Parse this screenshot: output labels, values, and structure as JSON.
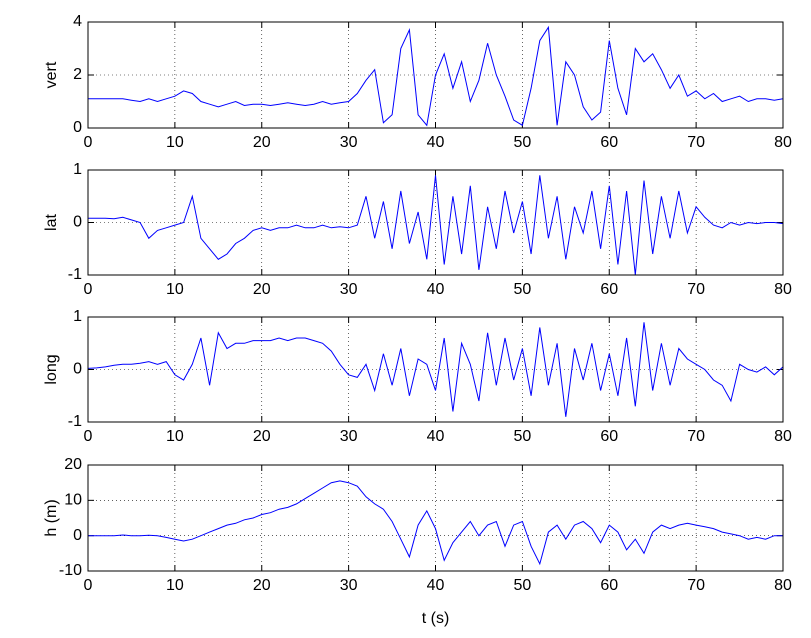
{
  "chart_data": [
    {
      "type": "line",
      "ylabel": "vert",
      "x": [
        0,
        1,
        2,
        3,
        4,
        5,
        6,
        7,
        8,
        9,
        10,
        11,
        12,
        13,
        14,
        15,
        16,
        17,
        18,
        19,
        20,
        21,
        22,
        23,
        24,
        25,
        26,
        27,
        28,
        29,
        30,
        31,
        32,
        33,
        34,
        35,
        36,
        37,
        38,
        39,
        40,
        41,
        42,
        43,
        44,
        45,
        46,
        47,
        48,
        49,
        50,
        51,
        52,
        53,
        54,
        55,
        56,
        57,
        58,
        59,
        60,
        61,
        62,
        63,
        64,
        65,
        66,
        67,
        68,
        69,
        70,
        71,
        72,
        73,
        74,
        75,
        76,
        77,
        78,
        79,
        80
      ],
      "series": [
        {
          "color": "#0000ff",
          "values": [
            1.1,
            1.1,
            1.1,
            1.1,
            1.1,
            1.05,
            1.0,
            1.1,
            1.0,
            1.1,
            1.2,
            1.4,
            1.3,
            1.0,
            0.9,
            0.8,
            0.9,
            1.0,
            0.85,
            0.9,
            0.9,
            0.85,
            0.9,
            0.95,
            0.9,
            0.85,
            0.9,
            1.0,
            0.9,
            0.95,
            1.0,
            1.3,
            1.8,
            2.2,
            0.2,
            0.5,
            3.0,
            3.7,
            0.5,
            0.1,
            2.0,
            2.8,
            1.5,
            2.5,
            1.0,
            1.8,
            3.2,
            2.0,
            1.2,
            0.3,
            0.1,
            1.5,
            3.3,
            3.8,
            0.1,
            2.5,
            2.0,
            0.8,
            0.3,
            0.6,
            3.3,
            1.5,
            0.5,
            3.0,
            2.5,
            2.8,
            2.2,
            1.5,
            2.0,
            1.2,
            1.4,
            1.1,
            1.3,
            1.0,
            1.1,
            1.2,
            1.0,
            1.1,
            1.1,
            1.05,
            1.1
          ]
        }
      ],
      "xlim": [
        0,
        80
      ],
      "ylim": [
        0,
        4
      ],
      "xticks": [
        0,
        10,
        20,
        30,
        40,
        50,
        60,
        70,
        80
      ],
      "yticks": [
        0,
        2,
        4
      ],
      "grid": true
    },
    {
      "type": "line",
      "ylabel": "lat",
      "x": [
        0,
        1,
        2,
        3,
        4,
        5,
        6,
        7,
        8,
        9,
        10,
        11,
        12,
        13,
        14,
        15,
        16,
        17,
        18,
        19,
        20,
        21,
        22,
        23,
        24,
        25,
        26,
        27,
        28,
        29,
        30,
        31,
        32,
        33,
        34,
        35,
        36,
        37,
        38,
        39,
        40,
        41,
        42,
        43,
        44,
        45,
        46,
        47,
        48,
        49,
        50,
        51,
        52,
        53,
        54,
        55,
        56,
        57,
        58,
        59,
        60,
        61,
        62,
        63,
        64,
        65,
        66,
        67,
        68,
        69,
        70,
        71,
        72,
        73,
        74,
        75,
        76,
        77,
        78,
        79,
        80
      ],
      "series": [
        {
          "color": "#0000ff",
          "values": [
            0.08,
            0.08,
            0.08,
            0.07,
            0.1,
            0.05,
            0,
            -0.3,
            -0.15,
            -0.1,
            -0.05,
            0,
            0.5,
            -0.3,
            -0.5,
            -0.7,
            -0.6,
            -0.4,
            -0.3,
            -0.15,
            -0.1,
            -0.15,
            -0.1,
            -0.1,
            -0.05,
            -0.1,
            -0.1,
            -0.05,
            -0.1,
            -0.08,
            -0.1,
            -0.05,
            0.5,
            -0.3,
            0.4,
            -0.5,
            0.6,
            -0.4,
            0.2,
            -0.7,
            0.9,
            -0.8,
            0.5,
            -0.6,
            0.7,
            -0.9,
            0.3,
            -0.5,
            0.6,
            -0.2,
            0.4,
            -0.6,
            0.9,
            -0.3,
            0.5,
            -0.7,
            0.3,
            -0.2,
            0.6,
            -0.5,
            0.7,
            -0.8,
            0.6,
            -1.0,
            0.8,
            -0.6,
            0.5,
            -0.3,
            0.6,
            -0.2,
            0.3,
            0.1,
            -0.05,
            -0.1,
            0,
            -0.05,
            0,
            -0.02,
            0,
            0,
            -0.02
          ]
        }
      ],
      "xlim": [
        0,
        80
      ],
      "ylim": [
        -1,
        1
      ],
      "xticks": [
        0,
        10,
        20,
        30,
        40,
        50,
        60,
        70,
        80
      ],
      "yticks": [
        -1,
        0,
        1
      ],
      "grid": true
    },
    {
      "type": "line",
      "ylabel": "long",
      "x": [
        0,
        1,
        2,
        3,
        4,
        5,
        6,
        7,
        8,
        9,
        10,
        11,
        12,
        13,
        14,
        15,
        16,
        17,
        18,
        19,
        20,
        21,
        22,
        23,
        24,
        25,
        26,
        27,
        28,
        29,
        30,
        31,
        32,
        33,
        34,
        35,
        36,
        37,
        38,
        39,
        40,
        41,
        42,
        43,
        44,
        45,
        46,
        47,
        48,
        49,
        50,
        51,
        52,
        53,
        54,
        55,
        56,
        57,
        58,
        59,
        60,
        61,
        62,
        63,
        64,
        65,
        66,
        67,
        68,
        69,
        70,
        71,
        72,
        73,
        74,
        75,
        76,
        77,
        78,
        79,
        80
      ],
      "series": [
        {
          "color": "#0000ff",
          "values": [
            0.02,
            0.03,
            0.05,
            0.08,
            0.1,
            0.1,
            0.12,
            0.15,
            0.1,
            0.15,
            -0.1,
            -0.2,
            0.1,
            0.6,
            -0.3,
            0.7,
            0.4,
            0.5,
            0.5,
            0.55,
            0.55,
            0.55,
            0.6,
            0.55,
            0.6,
            0.6,
            0.55,
            0.5,
            0.35,
            0.1,
            -0.1,
            -0.15,
            0.1,
            -0.4,
            0.3,
            -0.3,
            0.4,
            -0.5,
            0.2,
            0.1,
            -0.4,
            0.6,
            -0.8,
            0.5,
            0.1,
            -0.6,
            0.7,
            -0.3,
            0.6,
            -0.2,
            0.4,
            -0.5,
            0.8,
            -0.3,
            0.5,
            -0.9,
            0.4,
            -0.2,
            0.5,
            -0.4,
            0.3,
            -0.5,
            0.6,
            -0.7,
            0.9,
            -0.4,
            0.5,
            -0.3,
            0.4,
            0.2,
            0.1,
            0.0,
            -0.2,
            -0.3,
            -0.6,
            0.1,
            0.0,
            -0.05,
            0.05,
            -0.1,
            0.05
          ]
        }
      ],
      "xlim": [
        0,
        80
      ],
      "ylim": [
        -1,
        1
      ],
      "xticks": [
        0,
        10,
        20,
        30,
        40,
        50,
        60,
        70,
        80
      ],
      "yticks": [
        -1,
        0,
        1
      ],
      "grid": true
    },
    {
      "type": "line",
      "ylabel": "h (m)",
      "xlabel": "t (s)",
      "x": [
        0,
        1,
        2,
        3,
        4,
        5,
        6,
        7,
        8,
        9,
        10,
        11,
        12,
        13,
        14,
        15,
        16,
        17,
        18,
        19,
        20,
        21,
        22,
        23,
        24,
        25,
        26,
        27,
        28,
        29,
        30,
        31,
        32,
        33,
        34,
        35,
        36,
        37,
        38,
        39,
        40,
        41,
        42,
        43,
        44,
        45,
        46,
        47,
        48,
        49,
        50,
        51,
        52,
        53,
        54,
        55,
        56,
        57,
        58,
        59,
        60,
        61,
        62,
        63,
        64,
        65,
        66,
        67,
        68,
        69,
        70,
        71,
        72,
        73,
        74,
        75,
        76,
        77,
        78,
        79,
        80
      ],
      "series": [
        {
          "color": "#0000ff",
          "values": [
            0,
            0,
            0,
            0,
            0.2,
            0,
            0,
            0.1,
            0,
            -0.5,
            -1,
            -1.5,
            -1,
            0,
            1,
            2,
            3,
            3.5,
            4.5,
            5,
            6,
            6.5,
            7.5,
            8,
            9,
            10.5,
            12,
            13.5,
            15,
            15.5,
            15,
            14,
            11,
            9,
            7.5,
            4,
            -1,
            -6,
            3,
            7,
            2,
            -7,
            -2,
            1,
            4,
            0,
            3,
            4,
            -3,
            3,
            4,
            -3,
            -8,
            1,
            3,
            -1,
            3,
            4,
            2,
            -2,
            3,
            1,
            -4,
            -1,
            -5,
            1,
            3,
            2,
            3,
            3.5,
            3,
            2.5,
            2,
            1,
            0.5,
            0,
            -1,
            -0.5,
            -1,
            0,
            0
          ]
        }
      ],
      "xlim": [
        0,
        80
      ],
      "ylim": [
        -10,
        20
      ],
      "xticks": [
        0,
        10,
        20,
        30,
        40,
        50,
        60,
        70,
        80
      ],
      "yticks": [
        -10,
        0,
        10,
        20
      ],
      "grid": true
    }
  ]
}
